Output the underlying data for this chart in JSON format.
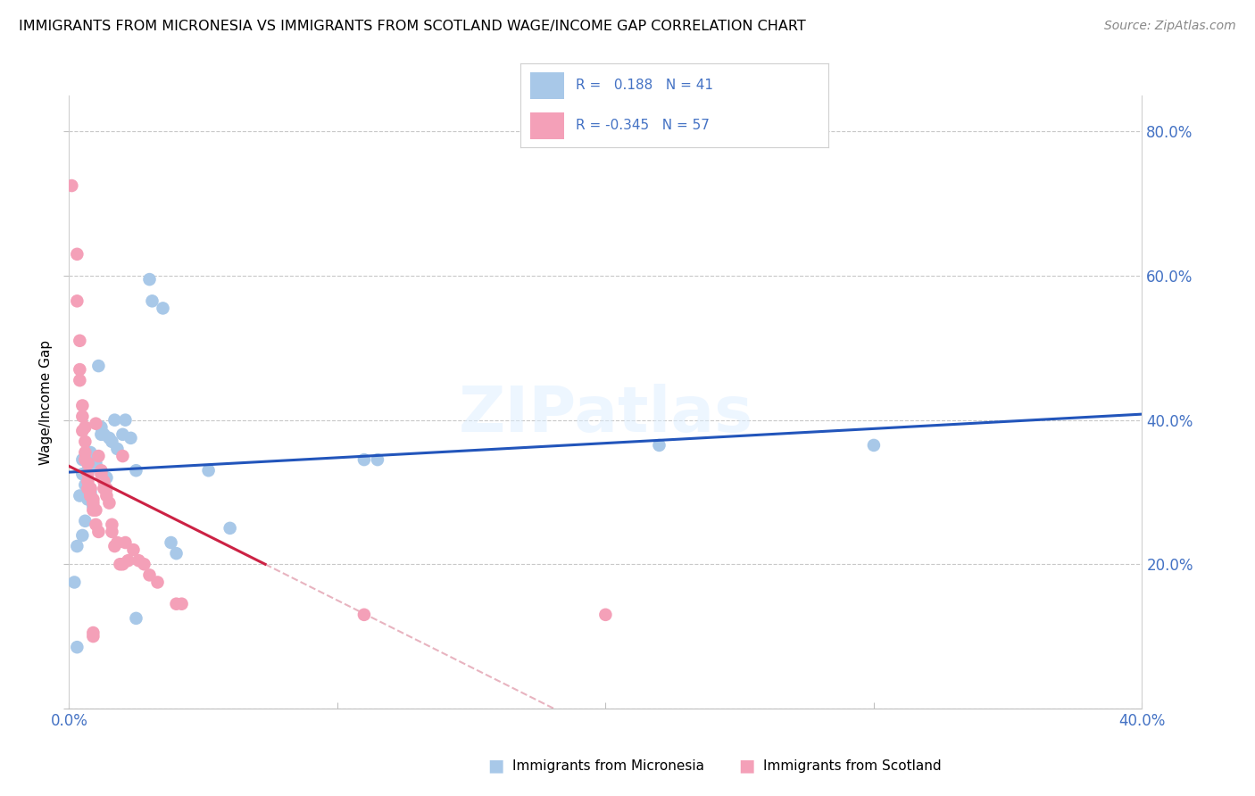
{
  "title": "IMMIGRANTS FROM MICRONESIA VS IMMIGRANTS FROM SCOTLAND WAGE/INCOME GAP CORRELATION CHART",
  "source": "Source: ZipAtlas.com",
  "ylabel": "Wage/Income Gap",
  "xlim": [
    0.0,
    0.4
  ],
  "ylim": [
    0.0,
    0.85
  ],
  "micronesia_color": "#a8c8e8",
  "scotland_color": "#f4a0b8",
  "micronesia_line_color": "#2255bb",
  "scotland_line_color": "#cc2244",
  "scotland_line_ext_color": "#e8b4c0",
  "micronesia_points": [
    [
      0.002,
      0.175
    ],
    [
      0.003,
      0.225
    ],
    [
      0.004,
      0.295
    ],
    [
      0.005,
      0.325
    ],
    [
      0.005,
      0.345
    ],
    [
      0.006,
      0.31
    ],
    [
      0.007,
      0.29
    ],
    [
      0.007,
      0.33
    ],
    [
      0.008,
      0.3
    ],
    [
      0.008,
      0.355
    ],
    [
      0.009,
      0.335
    ],
    [
      0.009,
      0.28
    ],
    [
      0.01,
      0.34
    ],
    [
      0.011,
      0.475
    ],
    [
      0.012,
      0.38
    ],
    [
      0.012,
      0.39
    ],
    [
      0.013,
      0.38
    ],
    [
      0.014,
      0.32
    ],
    [
      0.015,
      0.375
    ],
    [
      0.016,
      0.37
    ],
    [
      0.017,
      0.4
    ],
    [
      0.018,
      0.36
    ],
    [
      0.02,
      0.38
    ],
    [
      0.021,
      0.4
    ],
    [
      0.023,
      0.375
    ],
    [
      0.025,
      0.33
    ],
    [
      0.03,
      0.595
    ],
    [
      0.031,
      0.565
    ],
    [
      0.035,
      0.555
    ],
    [
      0.038,
      0.23
    ],
    [
      0.04,
      0.215
    ],
    [
      0.052,
      0.33
    ],
    [
      0.06,
      0.25
    ],
    [
      0.11,
      0.345
    ],
    [
      0.115,
      0.345
    ],
    [
      0.22,
      0.365
    ],
    [
      0.3,
      0.365
    ],
    [
      0.005,
      0.24
    ],
    [
      0.006,
      0.26
    ],
    [
      0.003,
      0.085
    ],
    [
      0.025,
      0.125
    ]
  ],
  "scotland_points": [
    [
      0.001,
      0.725
    ],
    [
      0.003,
      0.63
    ],
    [
      0.003,
      0.565
    ],
    [
      0.004,
      0.51
    ],
    [
      0.004,
      0.47
    ],
    [
      0.004,
      0.455
    ],
    [
      0.005,
      0.42
    ],
    [
      0.005,
      0.405
    ],
    [
      0.005,
      0.385
    ],
    [
      0.006,
      0.39
    ],
    [
      0.006,
      0.37
    ],
    [
      0.006,
      0.355
    ],
    [
      0.006,
      0.345
    ],
    [
      0.007,
      0.34
    ],
    [
      0.007,
      0.34
    ],
    [
      0.007,
      0.325
    ],
    [
      0.007,
      0.315
    ],
    [
      0.007,
      0.305
    ],
    [
      0.008,
      0.305
    ],
    [
      0.008,
      0.305
    ],
    [
      0.008,
      0.295
    ],
    [
      0.008,
      0.295
    ],
    [
      0.009,
      0.29
    ],
    [
      0.009,
      0.285
    ],
    [
      0.009,
      0.275
    ],
    [
      0.01,
      0.395
    ],
    [
      0.01,
      0.275
    ],
    [
      0.01,
      0.255
    ],
    [
      0.011,
      0.35
    ],
    [
      0.011,
      0.245
    ],
    [
      0.012,
      0.33
    ],
    [
      0.012,
      0.325
    ],
    [
      0.013,
      0.315
    ],
    [
      0.013,
      0.305
    ],
    [
      0.014,
      0.305
    ],
    [
      0.014,
      0.295
    ],
    [
      0.015,
      0.285
    ],
    [
      0.016,
      0.255
    ],
    [
      0.016,
      0.245
    ],
    [
      0.017,
      0.225
    ],
    [
      0.018,
      0.23
    ],
    [
      0.019,
      0.2
    ],
    [
      0.02,
      0.2
    ],
    [
      0.021,
      0.23
    ],
    [
      0.022,
      0.205
    ],
    [
      0.024,
      0.22
    ],
    [
      0.026,
      0.205
    ],
    [
      0.028,
      0.2
    ],
    [
      0.03,
      0.185
    ],
    [
      0.033,
      0.175
    ],
    [
      0.04,
      0.145
    ],
    [
      0.042,
      0.145
    ],
    [
      0.11,
      0.13
    ],
    [
      0.2,
      0.13
    ],
    [
      0.02,
      0.35
    ],
    [
      0.009,
      0.1
    ],
    [
      0.009,
      0.105
    ]
  ]
}
